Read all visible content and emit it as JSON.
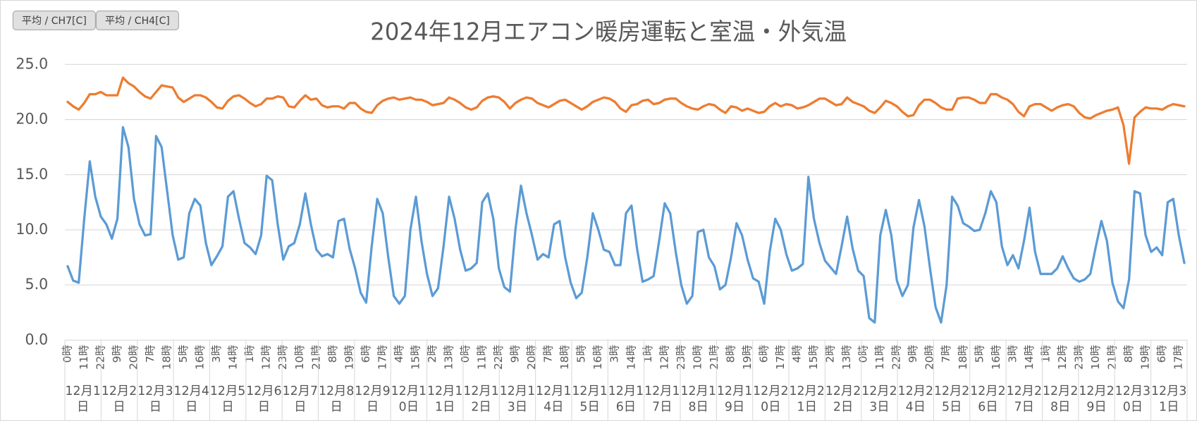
{
  "chart_data": {
    "type": "line",
    "title": "2024年12月エアコン暖房運転と室温・外気温",
    "categories": [
      "0時",
      null,
      null,
      "11時",
      null,
      null,
      "22時",
      null,
      null,
      "9時",
      null,
      null,
      "20時",
      null,
      null,
      "7時",
      null,
      null,
      "18時",
      null,
      null,
      "5時",
      null,
      null,
      "16時",
      null,
      null,
      "3時",
      null,
      null,
      "14時",
      null,
      null,
      "1時",
      null,
      null,
      "12時",
      null,
      null,
      "23時",
      null,
      null,
      "10時",
      null,
      null,
      "21時",
      null,
      null,
      "8時",
      null,
      null,
      "19時",
      null,
      null,
      "6時",
      null,
      null,
      "17時",
      null,
      null,
      "4時",
      null,
      null,
      "15時",
      null,
      null,
      "2時",
      null,
      null,
      "13時",
      null,
      null,
      "0時",
      null,
      null,
      "11時",
      null,
      null,
      "22時",
      null,
      null,
      "9時",
      null,
      null,
      "20時",
      null,
      null,
      "7時",
      null,
      null,
      "18時",
      null,
      null,
      "5時",
      null,
      null,
      "16時",
      null,
      null,
      "3時",
      null,
      null,
      "14時",
      null,
      null,
      "1時",
      null,
      null,
      "12時",
      null,
      null,
      "23時",
      null,
      null,
      "10時",
      null,
      null,
      "21時",
      null,
      null,
      "8時",
      null,
      null,
      "19時",
      null,
      null,
      "6時",
      null,
      null,
      "17時",
      null,
      null,
      "4時",
      null,
      null,
      "15時",
      null,
      null,
      "2時",
      null,
      null,
      "13時",
      null,
      null,
      "0時",
      null,
      null,
      "11時",
      null,
      null,
      "22時",
      null,
      null,
      "9時",
      null,
      null,
      "20時",
      null,
      null,
      "7時",
      null,
      null,
      "18時",
      null,
      null,
      "5時",
      null,
      null,
      "16時",
      null,
      null,
      "3時",
      null,
      null,
      "14時",
      null,
      null,
      "1時",
      null,
      null,
      "12時",
      null,
      null,
      "23時",
      null,
      null,
      "10時",
      null,
      null,
      "21時",
      null,
      null,
      "8時",
      null,
      null,
      "19時",
      null,
      null,
      "6時",
      null,
      null,
      "17時",
      null
    ],
    "groups": [
      "12月1日",
      "12月2日",
      "12月3日",
      "12月4日",
      "12月5日",
      "12月6日",
      "12月7日",
      "12月8日",
      "12月9日",
      "12月10日",
      "12月11日",
      "12月12日",
      "12月13日",
      "12月14日",
      "12月15日",
      "12月16日",
      "12月17日",
      "12月18日",
      "12月19日",
      "12月20日",
      "12月21日",
      "12月22日",
      "12月23日",
      "12月24日",
      "12月25日",
      "12月26日",
      "12月27日",
      "12月28日",
      "12月29日",
      "12月30日",
      "12月31日"
    ],
    "series": [
      {
        "name": "平均 / CH7[C]",
        "color": "#5b9bd5",
        "values": [
          6.7,
          5.4,
          5.2,
          11,
          16.2,
          13,
          11.2,
          10.5,
          9.2,
          11,
          19.3,
          17.5,
          12.8,
          10.5,
          9.5,
          9.6,
          18.5,
          17.5,
          13.5,
          9.5,
          7.3,
          7.5,
          11.5,
          12.8,
          12.2,
          8.8,
          6.8,
          7.6,
          8.5,
          13,
          13.5,
          11,
          8.8,
          8.4,
          7.8,
          9.5,
          14.9,
          14.5,
          10.5,
          7.3,
          8.5,
          8.8,
          10.5,
          13.3,
          10.5,
          8.2,
          7.6,
          7.8,
          7.5,
          10.8,
          11.0,
          8.3,
          6.5,
          4.3,
          3.4,
          8.5,
          12.8,
          11.5,
          7.5,
          4,
          3.3,
          4,
          10,
          13,
          9,
          6,
          4,
          4.7,
          8.5,
          13,
          11,
          8.2,
          6.3,
          6.5,
          7,
          12.5,
          13.3,
          11,
          6.5,
          4.8,
          4.4,
          10,
          14,
          11.5,
          9.5,
          7.3,
          7.8,
          7.5,
          10.5,
          10.8,
          7.5,
          5.2,
          3.8,
          4.3,
          7.5,
          11.5,
          10,
          8.2,
          8,
          6.8,
          6.8,
          11.5,
          12.2,
          8.3,
          5.3,
          5.5,
          5.8,
          9,
          12.4,
          11.5,
          8,
          5,
          3.3,
          4,
          9.8,
          10,
          7.5,
          6.7,
          4.6,
          5,
          7.5,
          10.6,
          9.5,
          7.3,
          5.6,
          5.3,
          3.3,
          8,
          11,
          10,
          7.8,
          6.3,
          6.5,
          6.9,
          14.8,
          11,
          8.8,
          7.2,
          6.6,
          6,
          8.5,
          11.2,
          8.3,
          6.3,
          5.8,
          2,
          1.6,
          9.5,
          11.8,
          9.5,
          5.4,
          4,
          5,
          10.2,
          12.7,
          10.3,
          6.5,
          3,
          1.6,
          5,
          13,
          12.2,
          10.6,
          10.3,
          9.9,
          10,
          11.5,
          13.5,
          12.5,
          8.5,
          6.8,
          7.7,
          6.5,
          9,
          12,
          8,
          6,
          6,
          6,
          6.5,
          7.6,
          6.5,
          5.6,
          5.3,
          5.5,
          6,
          8.5,
          10.8,
          9,
          5.2,
          3.5,
          2.9,
          5.5,
          13.5,
          13.3,
          9.5,
          8,
          8.4,
          7.7,
          12.5,
          12.8,
          9.5,
          7
        ]
      },
      {
        "name": "平均 / CH4[C]",
        "color": "#ed7d31",
        "values": [
          21.6,
          21.2,
          20.9,
          21.5,
          22.3,
          22.3,
          22.5,
          22.2,
          22.2,
          22.2,
          23.8,
          23.3,
          23.0,
          22.5,
          22.1,
          21.9,
          22.5,
          23.1,
          23.0,
          22.9,
          22.0,
          21.6,
          21.9,
          22.2,
          22.2,
          22.0,
          21.6,
          21.1,
          21.0,
          21.7,
          22.1,
          22.2,
          21.9,
          21.5,
          21.2,
          21.4,
          21.9,
          21.9,
          22.1,
          22.0,
          21.2,
          21.1,
          21.7,
          22.2,
          21.8,
          21.9,
          21.3,
          21.1,
          21.2,
          21.2,
          21.0,
          21.5,
          21.5,
          21.0,
          20.7,
          20.6,
          21.3,
          21.7,
          21.9,
          22.0,
          21.8,
          21.9,
          22.0,
          21.8,
          21.8,
          21.6,
          21.3,
          21.4,
          21.5,
          22.0,
          21.8,
          21.5,
          21.1,
          20.9,
          21.1,
          21.7,
          22.0,
          22.1,
          22.0,
          21.6,
          21.0,
          21.5,
          21.8,
          22.0,
          21.9,
          21.5,
          21.3,
          21.1,
          21.4,
          21.7,
          21.8,
          21.5,
          21.2,
          20.9,
          21.2,
          21.6,
          21.8,
          22.0,
          21.9,
          21.6,
          21.0,
          20.7,
          21.3,
          21.4,
          21.7,
          21.8,
          21.4,
          21.5,
          21.8,
          21.9,
          21.9,
          21.5,
          21.2,
          21.0,
          20.9,
          21.2,
          21.4,
          21.3,
          20.9,
          20.6,
          21.2,
          21.1,
          20.8,
          21.0,
          20.8,
          20.6,
          20.7,
          21.2,
          21.5,
          21.2,
          21.4,
          21.3,
          21.0,
          21.1,
          21.3,
          21.6,
          21.9,
          21.9,
          21.6,
          21.3,
          21.4,
          22.0,
          21.6,
          21.4,
          21.2,
          20.8,
          20.6,
          21.1,
          21.7,
          21.5,
          21.2,
          20.7,
          20.3,
          20.4,
          21.3,
          21.8,
          21.8,
          21.5,
          21.1,
          20.9,
          20.9,
          21.9,
          22.0,
          22.0,
          21.8,
          21.5,
          21.5,
          22.3,
          22.3,
          22.0,
          21.8,
          21.4,
          20.7,
          20.3,
          21.2,
          21.4,
          21.4,
          21.1,
          20.8,
          21.1,
          21.3,
          21.4,
          21.2,
          20.6,
          20.2,
          20.1,
          20.4,
          20.6,
          20.8,
          20.9,
          21.1,
          19.5,
          16.0,
          20.2,
          20.7,
          21.1,
          21.0,
          21.0,
          20.9,
          21.2,
          21.4,
          21.3,
          21.2
        ]
      }
    ],
    "ylim": [
      0,
      25
    ],
    "yticks": [
      {
        "value": 0,
        "label": "0.0"
      },
      {
        "value": 5,
        "label": "5.0"
      },
      {
        "value": 10,
        "label": "10.0"
      },
      {
        "value": 15,
        "label": "15.0"
      },
      {
        "value": 20,
        "label": "20.0"
      },
      {
        "value": 25,
        "label": "25.0"
      }
    ],
    "grid": true
  }
}
